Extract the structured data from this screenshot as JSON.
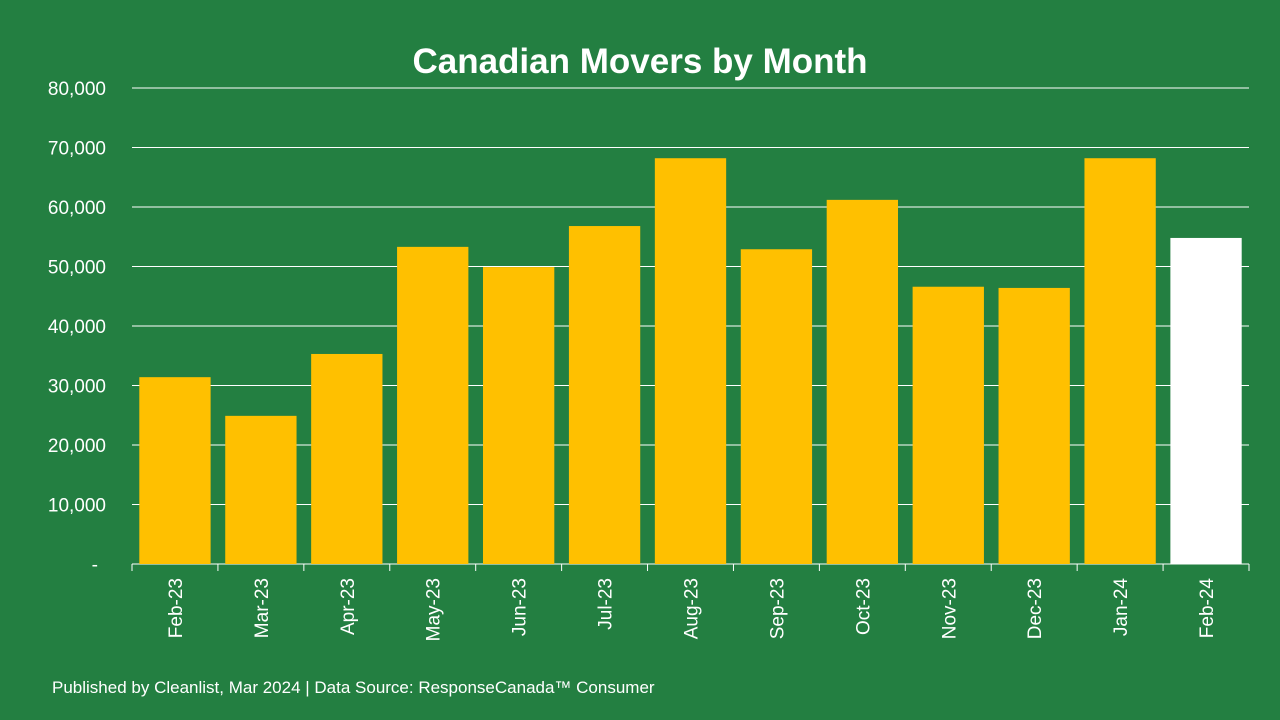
{
  "chart_data": {
    "type": "bar",
    "title": "Canadian Movers by Month",
    "categories": [
      "Feb-23",
      "Mar-23",
      "Apr-23",
      "May-23",
      "Jun-23",
      "Jul-23",
      "Aug-23",
      "Sep-23",
      "Oct-23",
      "Nov-23",
      "Dec-23",
      "Jan-24",
      "Feb-24"
    ],
    "values": [
      31400,
      24900,
      35300,
      53300,
      49900,
      56800,
      68200,
      52900,
      61200,
      46600,
      46400,
      68200,
      54800
    ],
    "ylim": [
      0,
      80000
    ],
    "yticks": [
      {
        "value": 0,
        "label": "-"
      },
      {
        "value": 10000,
        "label": "10,000"
      },
      {
        "value": 20000,
        "label": "20,000"
      },
      {
        "value": 30000,
        "label": "30,000"
      },
      {
        "value": 40000,
        "label": "40,000"
      },
      {
        "value": 50000,
        "label": "50,000"
      },
      {
        "value": 60000,
        "label": "60,000"
      },
      {
        "value": 70000,
        "label": "70,000"
      },
      {
        "value": 80000,
        "label": "80,000"
      }
    ],
    "grid": true,
    "xlabel": "",
    "ylabel": "",
    "colors": {
      "bar": "#FFC000",
      "highlight_bar": "#FFFFFF",
      "background": "#237F41",
      "grid": "#FFFFFF"
    },
    "highlight_index": 12
  },
  "footer": "Published by Cleanlist, Mar 2024 | Data Source: ResponseCanada™ Consumer"
}
